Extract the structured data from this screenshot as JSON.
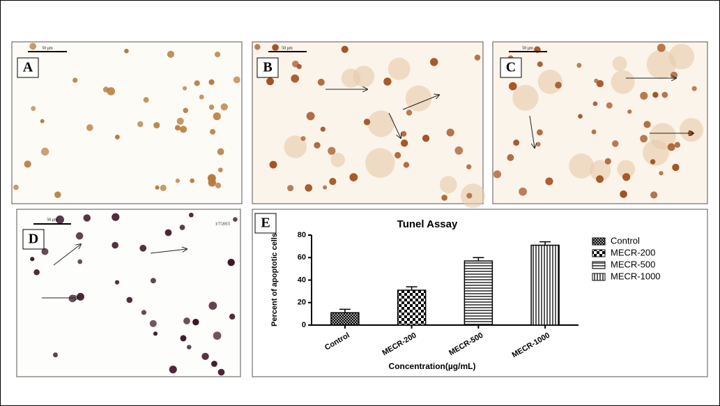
{
  "panels": [
    {
      "label": "A",
      "scale": "50 µm"
    },
    {
      "label": "B",
      "scale": "50 µm"
    },
    {
      "label": "C",
      "scale": "50 µm"
    },
    {
      "label": "D",
      "scale": "50 µm",
      "date": "1/7/2015"
    }
  ],
  "chart_data": {
    "type": "bar",
    "panel_label": "E",
    "title": "Tunel Assay",
    "categories": [
      "Control",
      "MECR-200",
      "MECR-500",
      "MECR-1000"
    ],
    "values": [
      11,
      31,
      57,
      71
    ],
    "errors": [
      3,
      3,
      3,
      3
    ],
    "color": "#000000",
    "y_label": "Percent of apoptotic cells",
    "x_label": "Concentration(µg/mL)",
    "ylim": [
      0,
      80
    ],
    "yticks": [
      0,
      20,
      40,
      60,
      80
    ],
    "legend": "right"
  }
}
